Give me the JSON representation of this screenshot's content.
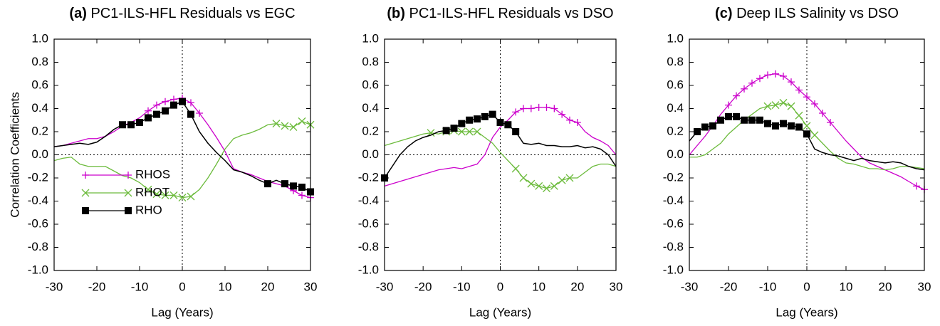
{
  "chart_data": [
    {
      "type": "line",
      "label": "(a)",
      "title": "PC1-ILS-HFL Residuals vs EGC",
      "xlabel": "Lag (Years)",
      "ylabel": "Correlation Coefficients",
      "x": [
        -30,
        -28,
        -26,
        -24,
        -22,
        -20,
        -18,
        -16,
        -14,
        -12,
        -10,
        -8,
        -6,
        -4,
        -2,
        0,
        2,
        4,
        6,
        8,
        10,
        12,
        14,
        16,
        18,
        20,
        22,
        24,
        26,
        28,
        30
      ],
      "xlim": [
        -30,
        30
      ],
      "xticks": [
        -30,
        -20,
        -10,
        0,
        10,
        20,
        30
      ],
      "ylim": [
        -1,
        1
      ],
      "yticks": [
        {
          "value": 1,
          "label": "1.0"
        },
        0.8,
        0.6,
        0.4,
        0.2,
        {
          "value": 0,
          "label": "0.0"
        },
        -0.2,
        -0.4,
        -0.6,
        -0.8,
        {
          "value": -1,
          "label": "-1.0"
        }
      ],
      "hline": 0,
      "vline": 0,
      "legend": "lower left",
      "series": [
        {
          "name": "RHOS",
          "color": "#cc00cc",
          "marker": "plus",
          "values": [
            0.07,
            0.08,
            0.1,
            0.12,
            0.14,
            0.14,
            0.16,
            0.2,
            0.25,
            0.28,
            0.32,
            0.38,
            0.43,
            0.46,
            0.48,
            0.49,
            0.45,
            0.36,
            0.26,
            0.15,
            0.03,
            -0.12,
            -0.15,
            -0.17,
            -0.2,
            -0.23,
            -0.25,
            -0.27,
            -0.31,
            -0.35,
            -0.37
          ],
          "marked": [
            false,
            false,
            false,
            false,
            false,
            false,
            false,
            false,
            false,
            false,
            false,
            true,
            true,
            true,
            true,
            true,
            true,
            true,
            false,
            false,
            false,
            false,
            false,
            false,
            false,
            false,
            false,
            false,
            true,
            true,
            true
          ]
        },
        {
          "name": "RHOT",
          "color": "#6cbb3c",
          "marker": "cross",
          "values": [
            -0.05,
            -0.03,
            -0.02,
            -0.08,
            -0.1,
            -0.1,
            -0.1,
            -0.14,
            -0.18,
            -0.2,
            -0.24,
            -0.3,
            -0.34,
            -0.35,
            -0.35,
            -0.37,
            -0.36,
            -0.3,
            -0.2,
            -0.08,
            0.05,
            0.14,
            0.17,
            0.19,
            0.22,
            0.26,
            0.27,
            0.25,
            0.24,
            0.29,
            0.26
          ],
          "marked": [
            false,
            false,
            false,
            false,
            false,
            false,
            false,
            false,
            false,
            false,
            false,
            true,
            true,
            true,
            true,
            true,
            true,
            false,
            false,
            false,
            false,
            false,
            false,
            false,
            false,
            false,
            true,
            true,
            true,
            true,
            true
          ]
        },
        {
          "name": "RHO",
          "color": "#000000",
          "marker": "square",
          "values": [
            0.07,
            0.08,
            0.09,
            0.1,
            0.09,
            0.11,
            0.16,
            0.22,
            0.26,
            0.26,
            0.28,
            0.32,
            0.35,
            0.38,
            0.43,
            0.46,
            0.35,
            0.2,
            0.1,
            0.02,
            -0.05,
            -0.13,
            -0.15,
            -0.18,
            -0.22,
            -0.25,
            -0.22,
            -0.25,
            -0.27,
            -0.28,
            -0.32
          ],
          "marked": [
            false,
            false,
            false,
            false,
            false,
            false,
            false,
            false,
            true,
            true,
            true,
            true,
            true,
            true,
            true,
            true,
            true,
            false,
            false,
            false,
            false,
            false,
            false,
            false,
            false,
            true,
            false,
            true,
            true,
            true,
            true
          ]
        }
      ]
    },
    {
      "type": "line",
      "label": "(b)",
      "title": "PC1-ILS-HFL Residuals vs DSO",
      "xlabel": "Lag (Years)",
      "x": [
        -30,
        -28,
        -26,
        -24,
        -22,
        -20,
        -18,
        -16,
        -14,
        -12,
        -10,
        -8,
        -6,
        -4,
        -2,
        0,
        2,
        4,
        6,
        8,
        10,
        12,
        14,
        16,
        18,
        20,
        22,
        24,
        26,
        28,
        30
      ],
      "xlim": [
        -30,
        30
      ],
      "xticks": [
        -30,
        -20,
        -10,
        0,
        10,
        20,
        30
      ],
      "ylim": [
        -1,
        1
      ],
      "yticks": [
        {
          "value": 1,
          "label": "1.0"
        },
        0.8,
        0.6,
        0.4,
        0.2,
        {
          "value": 0,
          "label": "0.0"
        },
        -0.2,
        -0.4,
        -0.6,
        -0.8,
        {
          "value": -1,
          "label": "-1.0"
        }
      ],
      "hline": 0,
      "vline": 0,
      "series": [
        {
          "name": "RHOS",
          "color": "#cc00cc",
          "marker": "plus",
          "values": [
            -0.27,
            -0.25,
            -0.23,
            -0.21,
            -0.19,
            -0.17,
            -0.15,
            -0.13,
            -0.12,
            -0.11,
            -0.12,
            -0.1,
            -0.08,
            0.0,
            0.15,
            0.24,
            0.3,
            0.37,
            0.4,
            0.4,
            0.41,
            0.41,
            0.4,
            0.35,
            0.3,
            0.28,
            0.2,
            0.15,
            0.12,
            0.08,
            0.0
          ],
          "marked": [
            false,
            false,
            false,
            false,
            false,
            false,
            false,
            false,
            false,
            false,
            false,
            false,
            false,
            false,
            false,
            false,
            false,
            true,
            true,
            true,
            true,
            true,
            true,
            true,
            true,
            true,
            false,
            false,
            false,
            false,
            false
          ]
        },
        {
          "name": "RHOT",
          "color": "#6cbb3c",
          "marker": "cross",
          "values": [
            0.08,
            0.1,
            0.12,
            0.14,
            0.16,
            0.18,
            0.19,
            0.18,
            0.2,
            0.21,
            0.2,
            0.2,
            0.2,
            0.15,
            0.1,
            0.02,
            -0.05,
            -0.12,
            -0.2,
            -0.25,
            -0.27,
            -0.29,
            -0.27,
            -0.22,
            -0.2,
            -0.2,
            -0.15,
            -0.1,
            -0.08,
            -0.08,
            -0.1
          ],
          "marked": [
            false,
            false,
            false,
            false,
            false,
            false,
            true,
            false,
            true,
            true,
            true,
            true,
            true,
            false,
            false,
            false,
            false,
            true,
            true,
            true,
            true,
            true,
            true,
            true,
            true,
            false,
            false,
            false,
            false,
            false,
            false
          ]
        },
        {
          "name": "RHO",
          "color": "#000000",
          "marker": "square",
          "values": [
            -0.2,
            -0.1,
            0.0,
            0.07,
            0.12,
            0.15,
            0.17,
            0.2,
            0.21,
            0.23,
            0.27,
            0.3,
            0.31,
            0.33,
            0.35,
            0.28,
            0.26,
            0.2,
            0.1,
            0.09,
            0.1,
            0.08,
            0.08,
            0.07,
            0.07,
            0.08,
            0.06,
            0.07,
            0.05,
            0.0,
            -0.1
          ],
          "marked": [
            true,
            false,
            false,
            false,
            false,
            false,
            false,
            false,
            true,
            true,
            true,
            true,
            true,
            true,
            true,
            true,
            true,
            true,
            false,
            false,
            false,
            false,
            false,
            false,
            false,
            false,
            false,
            false,
            false,
            false,
            false
          ]
        }
      ]
    },
    {
      "type": "line",
      "label": "(c)",
      "title": "Deep ILS Salinity vs DSO",
      "xlabel": "Lag (Years)",
      "x": [
        -30,
        -28,
        -26,
        -24,
        -22,
        -20,
        -18,
        -16,
        -14,
        -12,
        -10,
        -8,
        -6,
        -4,
        -2,
        0,
        2,
        4,
        6,
        8,
        10,
        12,
        14,
        16,
        18,
        20,
        22,
        24,
        26,
        28,
        30
      ],
      "xlim": [
        -30,
        30
      ],
      "xticks": [
        -30,
        -20,
        -10,
        0,
        10,
        20,
        30
      ],
      "ylim": [
        -1,
        1
      ],
      "yticks": [
        {
          "value": 1,
          "label": "1.0"
        },
        0.8,
        0.6,
        0.4,
        0.2,
        {
          "value": 0,
          "label": "0.0"
        },
        -0.2,
        -0.4,
        -0.6,
        -0.8,
        {
          "value": -1,
          "label": "-1.0"
        }
      ],
      "hline": 0,
      "vline": 0,
      "series": [
        {
          "name": "RHOS",
          "color": "#cc00cc",
          "marker": "plus",
          "values": [
            0.0,
            0.08,
            0.16,
            0.25,
            0.35,
            0.43,
            0.51,
            0.57,
            0.62,
            0.66,
            0.69,
            0.7,
            0.68,
            0.63,
            0.56,
            0.5,
            0.44,
            0.36,
            0.28,
            0.2,
            0.12,
            0.05,
            -0.02,
            -0.07,
            -0.1,
            -0.13,
            -0.16,
            -0.19,
            -0.23,
            -0.27,
            -0.3
          ],
          "marked": [
            false,
            false,
            false,
            false,
            false,
            true,
            true,
            true,
            true,
            true,
            true,
            true,
            true,
            true,
            true,
            true,
            true,
            true,
            true,
            false,
            false,
            false,
            false,
            false,
            false,
            false,
            false,
            false,
            false,
            true,
            true
          ]
        },
        {
          "name": "RHOT",
          "color": "#6cbb3c",
          "marker": "cross",
          "values": [
            -0.02,
            -0.02,
            0.0,
            0.05,
            0.1,
            0.18,
            0.24,
            0.3,
            0.35,
            0.4,
            0.42,
            0.43,
            0.45,
            0.42,
            0.34,
            0.25,
            0.17,
            0.1,
            0.03,
            -0.03,
            -0.07,
            -0.08,
            -0.1,
            -0.12,
            -0.12,
            -0.13,
            -0.12,
            -0.1,
            -0.1,
            -0.11,
            -0.12
          ],
          "marked": [
            false,
            false,
            false,
            false,
            false,
            false,
            false,
            false,
            false,
            false,
            true,
            true,
            true,
            true,
            true,
            true,
            true,
            false,
            false,
            false,
            false,
            false,
            false,
            false,
            false,
            false,
            false,
            false,
            false,
            false,
            false
          ]
        },
        {
          "name": "RHO",
          "color": "#000000",
          "marker": "square",
          "values": [
            0.12,
            0.2,
            0.24,
            0.25,
            0.3,
            0.33,
            0.33,
            0.3,
            0.3,
            0.3,
            0.27,
            0.25,
            0.27,
            0.25,
            0.24,
            0.18,
            0.05,
            0.02,
            0.0,
            -0.01,
            -0.03,
            -0.05,
            -0.03,
            -0.05,
            -0.06,
            -0.07,
            -0.06,
            -0.07,
            -0.1,
            -0.12,
            -0.13
          ],
          "marked": [
            false,
            true,
            true,
            true,
            true,
            true,
            true,
            true,
            true,
            true,
            true,
            true,
            true,
            true,
            true,
            true,
            false,
            false,
            false,
            false,
            false,
            false,
            false,
            false,
            false,
            false,
            false,
            false,
            false,
            false,
            false
          ]
        }
      ]
    }
  ]
}
